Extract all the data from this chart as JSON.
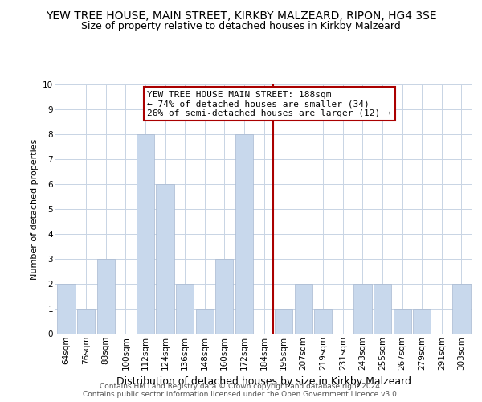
{
  "title": "YEW TREE HOUSE, MAIN STREET, KIRKBY MALZEARD, RIPON, HG4 3SE",
  "subtitle": "Size of property relative to detached houses in Kirkby Malzeard",
  "xlabel": "Distribution of detached houses by size in Kirkby Malzeard",
  "ylabel": "Number of detached properties",
  "categories": [
    "64sqm",
    "76sqm",
    "88sqm",
    "100sqm",
    "112sqm",
    "124sqm",
    "136sqm",
    "148sqm",
    "160sqm",
    "172sqm",
    "184sqm",
    "195sqm",
    "207sqm",
    "219sqm",
    "231sqm",
    "243sqm",
    "255sqm",
    "267sqm",
    "279sqm",
    "291sqm",
    "303sqm"
  ],
  "values": [
    2,
    1,
    3,
    0,
    8,
    6,
    2,
    1,
    3,
    8,
    0,
    1,
    2,
    1,
    0,
    2,
    2,
    1,
    1,
    0,
    2
  ],
  "bar_color": "#c8d8ec",
  "bar_edge_color": "#a8b8d0",
  "highlight_line_color": "#aa0000",
  "ylim": [
    0,
    10
  ],
  "yticks": [
    0,
    1,
    2,
    3,
    4,
    5,
    6,
    7,
    8,
    9,
    10
  ],
  "annotation_title": "YEW TREE HOUSE MAIN STREET: 188sqm",
  "annotation_line1": "← 74% of detached houses are smaller (34)",
  "annotation_line2": "26% of semi-detached houses are larger (12) →",
  "annotation_box_color": "#ffffff",
  "annotation_box_edge": "#aa0000",
  "footer_line1": "Contains HM Land Registry data © Crown copyright and database right 2024.",
  "footer_line2": "Contains public sector information licensed under the Open Government Licence v3.0.",
  "background_color": "#ffffff",
  "grid_color": "#c8d4e4",
  "title_fontsize": 10,
  "subtitle_fontsize": 9,
  "ylabel_fontsize": 8,
  "xlabel_fontsize": 9,
  "tick_fontsize": 7.5,
  "annotation_fontsize": 8,
  "footer_fontsize": 6.5
}
